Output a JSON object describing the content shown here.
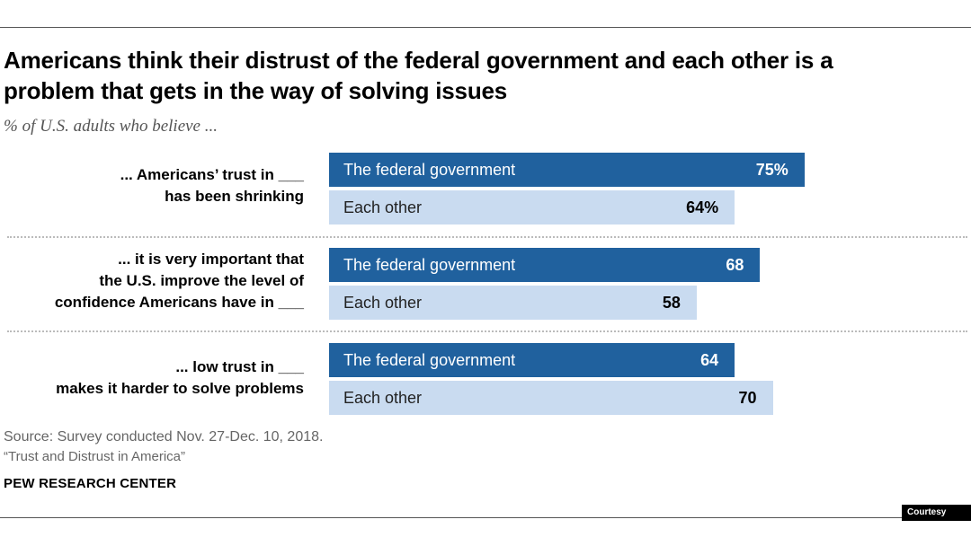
{
  "title_lines": [
    "Americans think their distrust of the federal government and each other is a",
    "problem that gets in the way of solving issues"
  ],
  "subtitle": "% of U.S. adults who believe ...",
  "chart_data": {
    "type": "bar",
    "orientation": "horizontal",
    "xlim": [
      0,
      100
    ],
    "groups": [
      {
        "label_lines": [
          "... Americans’ trust in ___",
          "has been shrinking"
        ],
        "bars": [
          {
            "category": "The federal government",
            "value": 75,
            "label": "75%"
          },
          {
            "category": "Each other",
            "value": 64,
            "label": "64%"
          }
        ]
      },
      {
        "label_lines": [
          "... it is very important that",
          "the U.S. improve the level of",
          "confidence Americans have in ___"
        ],
        "bars": [
          {
            "category": "The federal government",
            "value": 68,
            "label": "68"
          },
          {
            "category": "Each other",
            "value": 58,
            "label": "58"
          }
        ]
      },
      {
        "label_lines": [
          "... low trust in ___",
          "makes it harder to solve problems"
        ],
        "bars": [
          {
            "category": "The federal government",
            "value": 64,
            "label": "64"
          },
          {
            "category": "Each other",
            "value": 70,
            "label": "70"
          }
        ]
      }
    ],
    "colors": {
      "federal_government": "#20619e",
      "each_other": "#c9dbf0"
    }
  },
  "source": "Source: Survey conducted Nov. 27-Dec. 10, 2018.",
  "report": "“Trust and Distrust in America”",
  "org": "PEW RESEARCH CENTER",
  "credit": "Courtesy Image"
}
